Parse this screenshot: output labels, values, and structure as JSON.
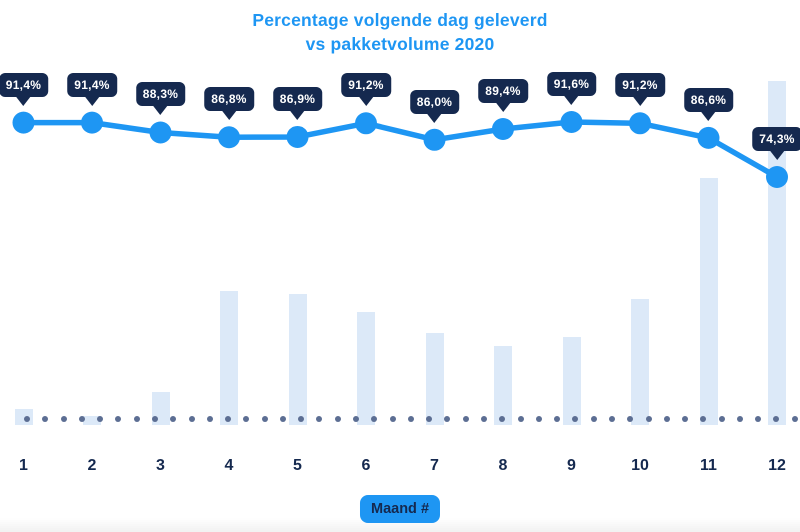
{
  "title": {
    "line1": "Percentage volgende dag geleverd",
    "line2": "vs pakketvolume 2020"
  },
  "x_axis_label": "Maand #",
  "colors": {
    "accent_blue": "#1E96F3",
    "badge_navy": "#15294F",
    "badge_text": "#FFFFFF",
    "bar_light_blue": "#DCE9F8",
    "baseline_dot_slate": "#5C6E93",
    "month_label_navy": "#15294F",
    "background": "#FFFFFF"
  },
  "chart_data": {
    "type": "combo",
    "title": "Percentage volgende dag geleverd vs pakketvolume 2020",
    "xlabel": "Maand #",
    "categories": [
      "1",
      "2",
      "3",
      "4",
      "5",
      "6",
      "7",
      "8",
      "9",
      "10",
      "11",
      "12"
    ],
    "series": [
      {
        "name": "Percentage volgende dag geleverd",
        "type": "line",
        "unit": "%",
        "values": [
          91.4,
          91.4,
          88.3,
          86.8,
          86.9,
          91.2,
          86.0,
          89.4,
          91.6,
          91.2,
          86.6,
          74.3
        ],
        "labels": [
          "91,4%",
          "91,4%",
          "88,3%",
          "86,8%",
          "86,9%",
          "91,2%",
          "86,0%",
          "89,4%",
          "91,6%",
          "91,2%",
          "86,6%",
          "74,3%"
        ]
      },
      {
        "name": "Pakketvolume 2020",
        "type": "bar",
        "unit": "relative index (max month = 100; estimated from bar heights, no volume axis shown)",
        "values": [
          4.7,
          2.6,
          9.6,
          39.0,
          38.1,
          32.8,
          26.7,
          23.0,
          25.6,
          36.6,
          71.8,
          100.0
        ]
      }
    ],
    "y_axis_visible": false,
    "grid": false,
    "legend": false,
    "annotations": "each line point labelled with a dark navy tooltip-style badge; dotted slate baseline along x-axis"
  }
}
